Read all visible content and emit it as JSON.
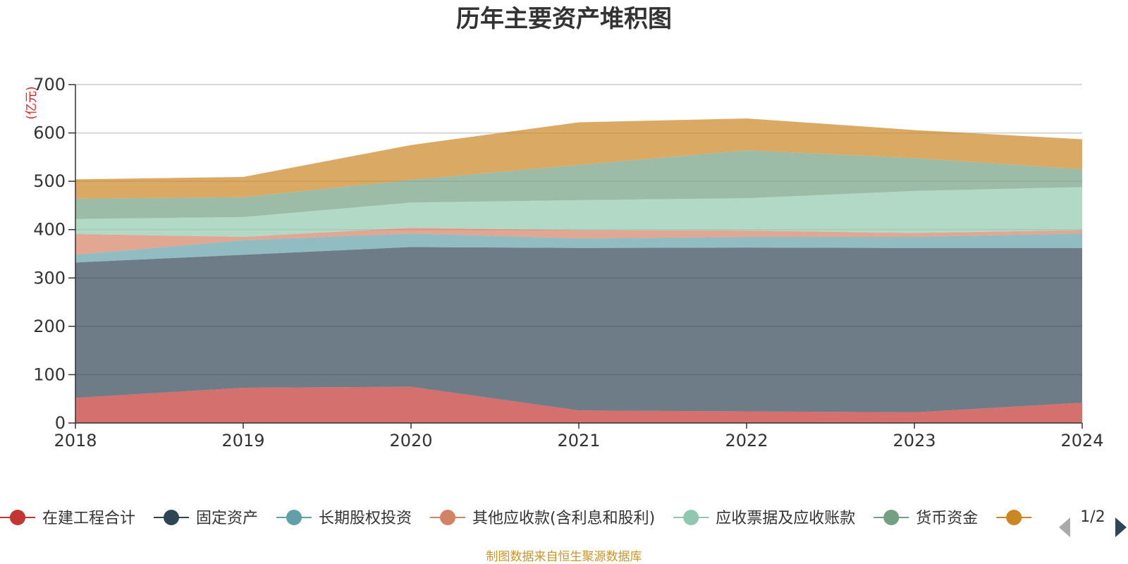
{
  "chart_data": {
    "type": "area",
    "stacked": true,
    "title": "历年主要资产堆积图",
    "unit_label": "(亿元)",
    "x": [
      "2018",
      "2019",
      "2020",
      "2021",
      "2022",
      "2023",
      "2024"
    ],
    "ylim": [
      0,
      700
    ],
    "yticks": [
      0,
      100,
      200,
      300,
      400,
      500,
      600,
      700
    ],
    "grid": true,
    "legend_position": "bottom",
    "series": [
      {
        "name": "在建工程合计",
        "color": "#c23531",
        "values": [
          52,
          73,
          75,
          26,
          24,
          22,
          42
        ]
      },
      {
        "name": "固定资产",
        "color": "#2f4554",
        "values": [
          280,
          275,
          289,
          336,
          339,
          340,
          320
        ]
      },
      {
        "name": "长期股权投资",
        "color": "#61a0a8",
        "values": [
          16,
          30,
          28,
          20,
          22,
          23,
          30
        ]
      },
      {
        "name": "其他应收款(含利息和股利)",
        "color": "#d48265",
        "values": [
          43,
          7,
          12,
          17,
          13,
          8,
          7
        ]
      },
      {
        "name": "应收票据及应收账款",
        "color": "#91c7ae",
        "values": [
          31,
          41,
          52,
          62,
          67,
          87,
          89
        ]
      },
      {
        "name": "货币资金",
        "color": "#749f83",
        "values": [
          42,
          41,
          47,
          73,
          99,
          68,
          37
        ]
      },
      {
        "name": "",
        "color": "#ca8622",
        "values": [
          40,
          42,
          72,
          88,
          66,
          58,
          62
        ]
      }
    ]
  },
  "legend": {
    "page_indicator": "1/2"
  },
  "footer": {
    "source": "制图数据来自恒生聚源数据库"
  }
}
